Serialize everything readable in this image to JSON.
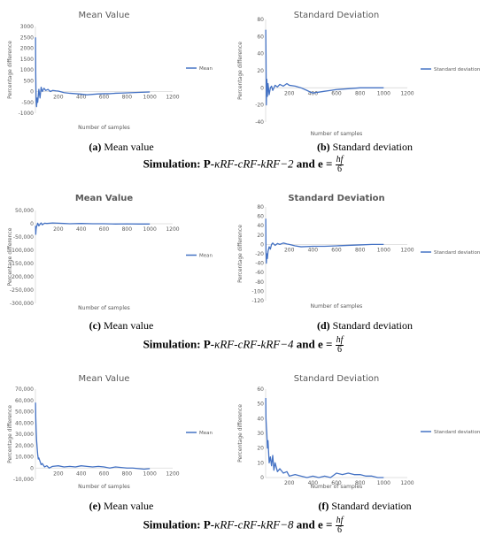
{
  "captions": {
    "a": {
      "label": "(a)",
      "text": " Mean value"
    },
    "b": {
      "label": "(b)",
      "text": " Standard deviation"
    },
    "c": {
      "label": "(c)",
      "text": " Mean value"
    },
    "d": {
      "label": "(d)",
      "text": " Standard deviation"
    },
    "e": {
      "label": "(e)",
      "text": " Mean value"
    },
    "f": {
      "label": "(f)",
      "text": " Standard deviation"
    }
  },
  "simulations": [
    {
      "prefix": "Simulation: P-",
      "kernel": "κRF-cRF-kRF−2",
      "suffix": " and e =",
      "frac_num": "hf",
      "frac_den": "6"
    },
    {
      "prefix": "Simulation: P-",
      "kernel": "κRF-cRF-kRF−4",
      "suffix": " and e =",
      "frac_num": "hf",
      "frac_den": "6"
    },
    {
      "prefix": "Simulation: P-",
      "kernel": "κRF-cRF-kRF−8",
      "suffix": " and e =",
      "frac_num": "hf",
      "frac_den": "6"
    }
  ],
  "colors": {
    "series": "#4472c4",
    "axis": "#d9d9d9",
    "text": "#595959"
  },
  "chart_data": [
    {
      "id": "a",
      "type": "line",
      "title": "Mean Value",
      "title_bold": false,
      "xlabel": "Number of samples",
      "ylabel": "Percentage difference",
      "legend": "right",
      "xticks": [
        "200",
        "400",
        "600",
        "800",
        "1000",
        "1200"
      ],
      "xlim": [
        0,
        1200
      ],
      "yticks": [
        "-1000",
        "-500",
        "0",
        "500",
        "1000",
        "1500",
        "2000",
        "2500",
        "3000"
      ],
      "ylim": [
        -1000,
        3000
      ],
      "series": [
        {
          "name": "Mean",
          "x": [
            1,
            3,
            6,
            10,
            15,
            20,
            25,
            30,
            40,
            50,
            60,
            75,
            90,
            110,
            130,
            150,
            180,
            200,
            250,
            300,
            350,
            400,
            450,
            500,
            550,
            600,
            650,
            700,
            750,
            800,
            850,
            900,
            950,
            1000
          ],
          "y": [
            2500,
            800,
            -400,
            -700,
            -300,
            -500,
            -200,
            100,
            -300,
            200,
            0,
            150,
            50,
            100,
            0,
            50,
            30,
            20,
            -50,
            -80,
            -100,
            -120,
            -150,
            -130,
            -110,
            -100,
            -100,
            -80,
            -70,
            -60,
            -50,
            -40,
            -30,
            -20
          ]
        }
      ]
    },
    {
      "id": "b",
      "type": "line",
      "title": "Standard Deviation",
      "title_bold": false,
      "xlabel": "Number of samples",
      "ylabel": "Percentage difference",
      "legend": "right",
      "xticks": [
        "200",
        "400",
        "600",
        "800",
        "1000",
        "1200"
      ],
      "xlim": [
        0,
        1200
      ],
      "yticks": [
        "-40",
        "-20",
        "0",
        "20",
        "40",
        "60",
        "80"
      ],
      "ylim": [
        -40,
        80
      ],
      "series": [
        {
          "name": "Standard deviation",
          "x": [
            1,
            3,
            6,
            10,
            15,
            20,
            30,
            40,
            50,
            60,
            80,
            100,
            120,
            150,
            180,
            200,
            250,
            300,
            350,
            380,
            400,
            450,
            500,
            550,
            600,
            700,
            800,
            900,
            1000
          ],
          "y": [
            68,
            40,
            -20,
            10,
            -10,
            5,
            -8,
            0,
            2,
            -3,
            3,
            1,
            4,
            2,
            5,
            3,
            2,
            0,
            -3,
            -5,
            -6,
            -5,
            -4,
            -3,
            -2,
            -1,
            0,
            0,
            0
          ]
        }
      ]
    },
    {
      "id": "c",
      "type": "line",
      "title": "Mean Value",
      "title_bold": true,
      "xlabel": "Number of samples",
      "ylabel": "Percentage difference",
      "legend": "right",
      "xticks": [
        "200",
        "400",
        "600",
        "800",
        "1000",
        "1200"
      ],
      "xlim": [
        0,
        1200
      ],
      "yticks": [
        "-300,000",
        "-250,000",
        "-200,000",
        "-150,000",
        "-100,000",
        "-50,000",
        "0",
        "50,000"
      ],
      "ylim": [
        -300000,
        50000
      ],
      "series": [
        {
          "name": "Mean",
          "x": [
            1,
            3,
            6,
            10,
            15,
            20,
            30,
            40,
            50,
            60,
            80,
            100,
            150,
            200,
            250,
            300,
            400,
            500,
            600,
            700,
            800,
            900,
            1000
          ],
          "y": [
            -8000,
            -40000,
            -20000,
            -10000,
            -5000,
            2000,
            -8000,
            -2000,
            3000,
            -4000,
            2000,
            1000,
            3000,
            2000,
            1000,
            0,
            1000,
            0,
            0,
            -1000,
            -500,
            -1000,
            -1000
          ]
        }
      ]
    },
    {
      "id": "d",
      "type": "line",
      "title": "Standard Deviation",
      "title_bold": true,
      "xlabel": "Number of samples",
      "ylabel": "Percentage difference",
      "legend": "right",
      "xticks": [
        "200",
        "400",
        "600",
        "800",
        "1000",
        "1200"
      ],
      "xlim": [
        0,
        1200
      ],
      "yticks": [
        "-120",
        "-100",
        "-80",
        "-60",
        "-40",
        "-20",
        "0",
        "20",
        "40",
        "60",
        "80"
      ],
      "ylim": [
        -120,
        80
      ],
      "series": [
        {
          "name": "Standard deviation",
          "x": [
            1,
            3,
            6,
            10,
            15,
            20,
            30,
            40,
            50,
            60,
            80,
            100,
            120,
            150,
            180,
            200,
            250,
            300,
            400,
            500,
            600,
            700,
            800,
            900,
            1000
          ],
          "y": [
            55,
            -10,
            -40,
            -20,
            -30,
            -15,
            -5,
            -10,
            0,
            3,
            -2,
            2,
            0,
            3,
            1,
            0,
            -3,
            -5,
            -4,
            -4,
            -3,
            -2,
            -1,
            0,
            0
          ]
        }
      ]
    },
    {
      "id": "e",
      "type": "line",
      "title": "Mean Value",
      "title_bold": false,
      "xlabel": "Number of samples",
      "ylabel": "Percentage difference",
      "legend": "right",
      "xticks": [
        "200",
        "400",
        "600",
        "800",
        "1000",
        "1200"
      ],
      "xlim": [
        0,
        1200
      ],
      "yticks": [
        "-10,000",
        "0",
        "10,000",
        "20,000",
        "30,000",
        "40,000",
        "50,000",
        "60,000",
        "70,000"
      ],
      "ylim": [
        -10000,
        70000
      ],
      "series": [
        {
          "name": "Mean",
          "x": [
            1,
            3,
            6,
            10,
            15,
            20,
            25,
            30,
            40,
            50,
            60,
            80,
            100,
            120,
            150,
            200,
            250,
            300,
            350,
            400,
            450,
            500,
            550,
            600,
            650,
            700,
            750,
            800,
            850,
            900,
            950,
            1000
          ],
          "y": [
            58000,
            45000,
            35000,
            25000,
            18000,
            12000,
            8000,
            9000,
            6000,
            3000,
            4000,
            1000,
            2000,
            0,
            1500,
            2000,
            1000,
            1500,
            1000,
            2000,
            1500,
            1000,
            1500,
            1000,
            0,
            1000,
            500,
            0,
            0,
            -500,
            -1000,
            -500
          ]
        }
      ]
    },
    {
      "id": "f",
      "type": "line",
      "title": "Standard Deviation",
      "title_bold": false,
      "xlabel": "Number of samples",
      "ylabel": "Percentage difference",
      "legend": "right",
      "xticks": [
        "200",
        "400",
        "600",
        "800",
        "1000",
        "1200"
      ],
      "xlim": [
        0,
        1200
      ],
      "yticks": [
        "0",
        "10",
        "20",
        "30",
        "40",
        "50",
        "60"
      ],
      "ylim": [
        0,
        60
      ],
      "series": [
        {
          "name": "Standard deviation",
          "x": [
            1,
            3,
            6,
            10,
            15,
            20,
            30,
            40,
            50,
            60,
            70,
            80,
            100,
            120,
            150,
            180,
            200,
            250,
            300,
            350,
            400,
            450,
            500,
            550,
            600,
            650,
            700,
            750,
            800,
            850,
            900,
            950,
            1000
          ],
          "y": [
            54,
            40,
            35,
            30,
            20,
            25,
            10,
            14,
            8,
            15,
            5,
            10,
            4,
            6,
            3,
            4,
            1,
            2,
            1,
            0,
            1,
            0,
            1,
            0,
            3,
            2,
            3,
            2,
            2,
            1,
            1,
            0,
            0
          ]
        }
      ]
    }
  ]
}
